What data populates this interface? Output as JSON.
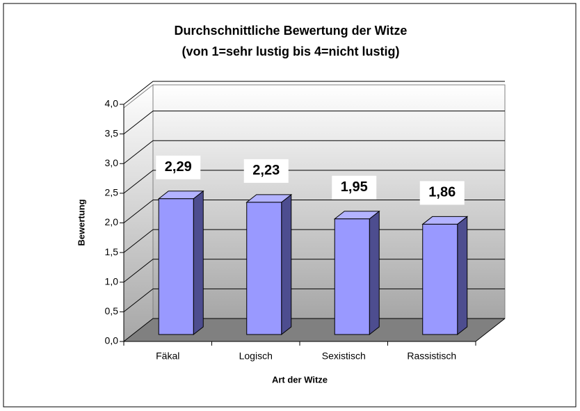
{
  "chart_data": {
    "type": "bar3d",
    "title": "Durchschnittliche Bewertung der Witze",
    "subtitle": "(von 1=sehr lustig bis 4=nicht lustig)",
    "x_label": "Art der Witze",
    "y_label": "Bewertung",
    "categories": [
      "Fäkal",
      "Logisch",
      "Sexistisch",
      "Rassistisch"
    ],
    "values": [
      2.29,
      2.23,
      1.95,
      1.86
    ],
    "value_labels": [
      "2,29",
      "2,23",
      "1,95",
      "1,86"
    ],
    "color": "#9999ff",
    "ylim": [
      0,
      4
    ],
    "yticks": [
      {
        "value": 0,
        "label": "0,0"
      },
      {
        "value": 0.5,
        "label": "0,5"
      },
      {
        "value": 1,
        "label": "1,0"
      },
      {
        "value": 1.5,
        "label": "1,5"
      },
      {
        "value": 2,
        "label": "2,0"
      },
      {
        "value": 2.5,
        "label": "2,5"
      },
      {
        "value": 3,
        "label": "3,0"
      },
      {
        "value": 3.5,
        "label": "3,5"
      },
      {
        "value": 4,
        "label": "4,0"
      }
    ],
    "grid": true
  }
}
